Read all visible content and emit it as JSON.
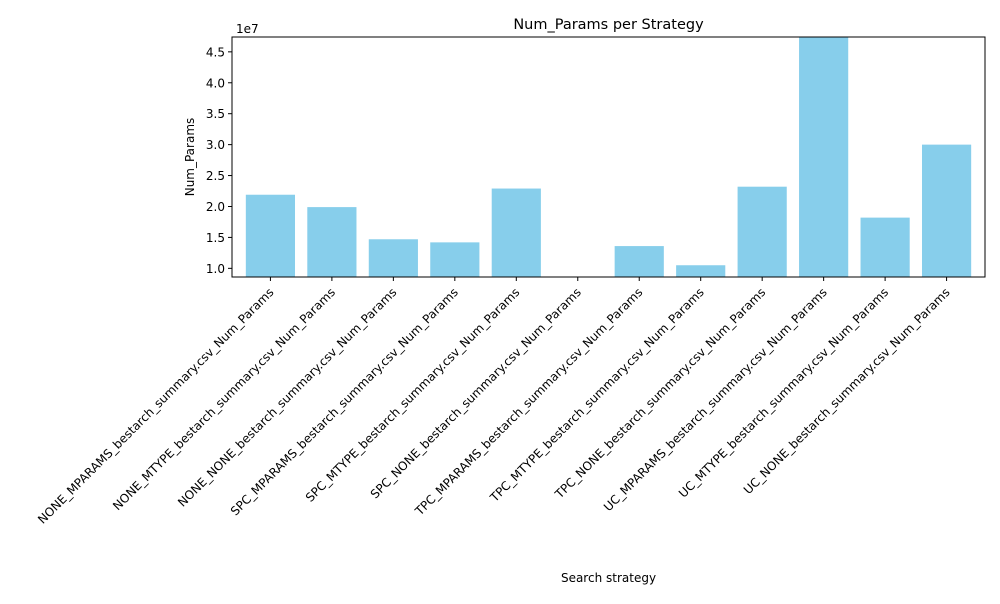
{
  "chart_data": {
    "type": "bar",
    "title": "Num_Params per Strategy",
    "xlabel": "Search strategy",
    "ylabel": "Num_Params",
    "offset_label": "1e7",
    "ylim": [
      0.86,
      4.74
    ],
    "yticks": [
      1.0,
      1.5,
      2.0,
      2.5,
      3.0,
      3.5,
      4.0,
      4.5
    ],
    "ytick_labels": [
      "1.0",
      "1.5",
      "2.0",
      "2.5",
      "3.0",
      "3.5",
      "4.0",
      "4.5"
    ],
    "bar_color": "#87ceeb",
    "categories": [
      "NONE_MPARAMS_bestarch_summary.csv_Num_Params",
      "NONE_MTYPE_bestarch_summary.csv_Num_Params",
      "NONE_NONE_bestarch_summary.csv_Num_Params",
      "SPC_MPARAMS_bestarch_summary.csv_Num_Params",
      "SPC_MTYPE_bestarch_summary.csv_Num_Params",
      "SPC_NONE_bestarch_summary.csv_Num_Params",
      "TPC_MPARAMS_bestarch_summary.csv_Num_Params",
      "TPC_MTYPE_bestarch_summary.csv_Num_Params",
      "TPC_NONE_bestarch_summary.csv_Num_Params",
      "UC_MPARAMS_bestarch_summary.csv_Num_Params",
      "UC_MTYPE_bestarch_summary.csv_Num_Params",
      "UC_NONE_bestarch_summary.csv_Num_Params"
    ],
    "values": [
      2.19,
      1.99,
      1.47,
      1.42,
      2.29,
      0.86,
      1.36,
      1.05,
      2.32,
      4.74,
      1.82,
      3.0
    ],
    "grid": false,
    "legend": "none"
  }
}
